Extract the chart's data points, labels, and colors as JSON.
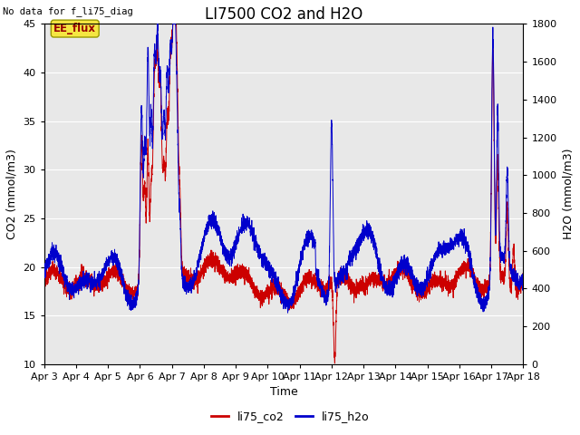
{
  "title": "LI7500 CO2 and H2O",
  "no_data_text": "No data for f_li75_diag",
  "ee_flux_label": "EE_flux",
  "xlabel": "Time",
  "ylabel_left": "CO2 (mmol/m3)",
  "ylabel_right": "H2O (mmol/m3)",
  "ylim_left": [
    10,
    45
  ],
  "ylim_right": [
    0,
    1800
  ],
  "yticks_left": [
    10,
    15,
    20,
    25,
    30,
    35,
    40,
    45
  ],
  "yticks_right": [
    0,
    200,
    400,
    600,
    800,
    1000,
    1200,
    1400,
    1600,
    1800
  ],
  "xticklabels": [
    "Apr 3",
    "Apr 4",
    "Apr 5",
    "Apr 6",
    "Apr 7",
    "Apr 8",
    "Apr 9",
    "Apr 10",
    "Apr 11",
    "Apr 12",
    "Apr 13",
    "Apr 14",
    "Apr 15",
    "Apr 16",
    "Apr 17",
    "Apr 18"
  ],
  "color_co2": "#cc0000",
  "color_h2o": "#0000cc",
  "color_bg": "#e8e8e8",
  "legend_co2": "li75_co2",
  "legend_h2o": "li75_h2o",
  "title_fontsize": 12,
  "axis_label_fontsize": 9,
  "tick_fontsize": 8,
  "figwidth": 6.4,
  "figheight": 4.8,
  "dpi": 100
}
